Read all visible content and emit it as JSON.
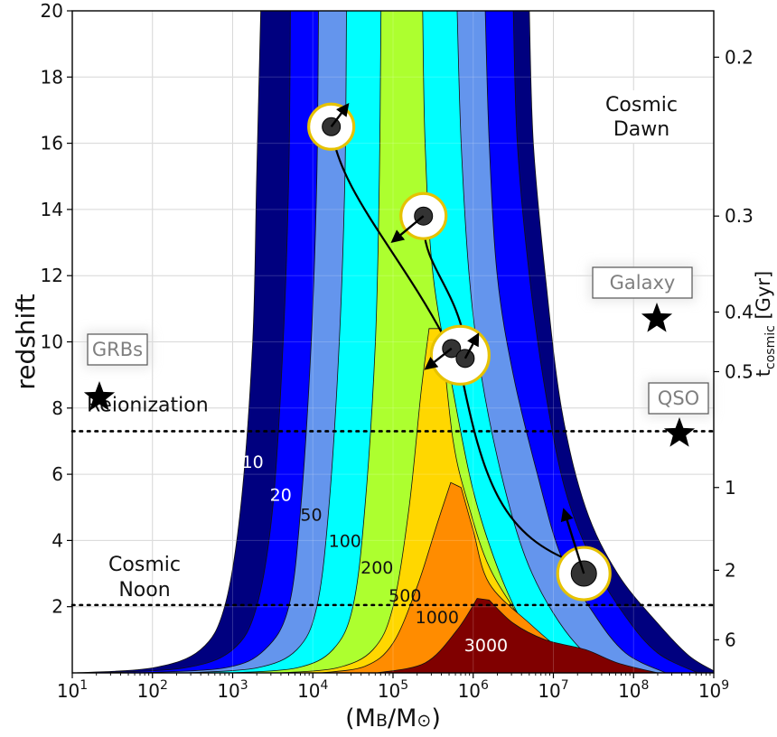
{
  "chart_data": {
    "type": "contour",
    "xlabel": "(M_B/M_⊙)",
    "ylabel": "redshift",
    "y2label": "t_cosmic [Gyr]",
    "xscale": "log",
    "xlim": [
      10,
      1000000000
    ],
    "ylim": [
      0,
      20
    ],
    "x_ticks": [
      {
        "exp": 1,
        "base": "10",
        "sup": "1"
      },
      {
        "exp": 2,
        "base": "10",
        "sup": "2"
      },
      {
        "exp": 3,
        "base": "10",
        "sup": "3"
      },
      {
        "exp": 4,
        "base": "10",
        "sup": "4"
      },
      {
        "exp": 5,
        "base": "10",
        "sup": "5"
      },
      {
        "exp": 6,
        "base": "10",
        "sup": "6"
      },
      {
        "exp": 7,
        "base": "10",
        "sup": "7"
      },
      {
        "exp": 8,
        "base": "10",
        "sup": "8"
      },
      {
        "exp": 9,
        "base": "10",
        "sup": "9"
      }
    ],
    "y_ticks": [
      2,
      4,
      6,
      8,
      10,
      12,
      14,
      16,
      18,
      20
    ],
    "y2_ticks": [
      {
        "label": "0.2",
        "z": 18.6
      },
      {
        "label": "0.3",
        "z": 13.8
      },
      {
        "label": "0.4",
        "z": 10.9
      },
      {
        "label": "0.5",
        "z": 9.1
      },
      {
        "label": "1",
        "z": 5.6
      },
      {
        "label": "2",
        "z": 3.1
      },
      {
        "label": "6",
        "z": 1.0
      }
    ],
    "grid": true,
    "contours": [
      {
        "level": 10,
        "color": "#00007f",
        "label": "10",
        "label_at": [
          3.25,
          6.2
        ],
        "label_color": "#ffffff",
        "left": [
          [
            1.0,
            0
          ],
          [
            2.0,
            0.15
          ],
          [
            2.6,
            0.7
          ],
          [
            2.9,
            2.0
          ],
          [
            3.1,
            5
          ],
          [
            3.25,
            10
          ],
          [
            3.3,
            15
          ],
          [
            3.35,
            20
          ]
        ],
        "right": [
          [
            9.05,
            0
          ],
          [
            8.7,
            0.5
          ],
          [
            8.3,
            1.5
          ],
          [
            7.8,
            3.0
          ],
          [
            7.4,
            5
          ],
          [
            7.1,
            8
          ],
          [
            6.9,
            12
          ],
          [
            6.75,
            16
          ],
          [
            6.7,
            20
          ]
        ]
      },
      {
        "level": 20,
        "color": "#0000ff",
        "label": "20",
        "label_at": [
          3.6,
          5.2
        ],
        "label_color": "#ffffff",
        "left": [
          [
            1.3,
            0
          ],
          [
            2.4,
            0.15
          ],
          [
            3.0,
            0.7
          ],
          [
            3.3,
            2.0
          ],
          [
            3.5,
            5
          ],
          [
            3.63,
            10
          ],
          [
            3.7,
            15
          ],
          [
            3.72,
            20
          ]
        ],
        "right": [
          [
            8.8,
            0
          ],
          [
            8.3,
            0.6
          ],
          [
            7.9,
            1.7
          ],
          [
            7.5,
            3.3
          ],
          [
            7.15,
            5.5
          ],
          [
            6.9,
            8.5
          ],
          [
            6.7,
            12
          ],
          [
            6.55,
            16
          ],
          [
            6.5,
            20
          ]
        ]
      },
      {
        "level": 50,
        "color": "#6495ed",
        "label": "50",
        "label_at": [
          3.98,
          4.6
        ],
        "label_color": "#111111",
        "left": [
          [
            1.8,
            0
          ],
          [
            2.9,
            0.15
          ],
          [
            3.4,
            0.7
          ],
          [
            3.7,
            2.0
          ],
          [
            3.85,
            5
          ],
          [
            3.98,
            10
          ],
          [
            4.05,
            15
          ],
          [
            4.07,
            20
          ]
        ],
        "right": [
          [
            8.4,
            0
          ],
          [
            7.9,
            0.6
          ],
          [
            7.5,
            1.8
          ],
          [
            7.1,
            3.5
          ],
          [
            6.8,
            6
          ],
          [
            6.5,
            9
          ],
          [
            6.3,
            12
          ],
          [
            6.2,
            16
          ],
          [
            6.15,
            20
          ]
        ]
      },
      {
        "level": 100,
        "color": "#00ffff",
        "label": "100",
        "label_at": [
          4.4,
          3.8
        ],
        "label_color": "#111111",
        "left": [
          [
            2.4,
            0
          ],
          [
            3.3,
            0.15
          ],
          [
            3.8,
            0.7
          ],
          [
            4.05,
            2.0
          ],
          [
            4.2,
            5
          ],
          [
            4.33,
            10
          ],
          [
            4.4,
            15
          ],
          [
            4.42,
            20
          ]
        ],
        "right": [
          [
            7.9,
            0
          ],
          [
            7.4,
            0.6
          ],
          [
            7.0,
            1.8
          ],
          [
            6.65,
            3.5
          ],
          [
            6.35,
            6
          ],
          [
            6.1,
            9
          ],
          [
            5.95,
            12
          ],
          [
            5.85,
            16
          ],
          [
            5.8,
            20
          ]
        ]
      },
      {
        "level": 200,
        "color": "#adff2f",
        "label": "200",
        "label_at": [
          4.8,
          3.0
        ],
        "label_color": "#111111",
        "left": [
          [
            3.0,
            0
          ],
          [
            3.8,
            0.15
          ],
          [
            4.25,
            0.7
          ],
          [
            4.5,
            2.0
          ],
          [
            4.65,
            5
          ],
          [
            4.78,
            10
          ],
          [
            4.83,
            15
          ],
          [
            4.85,
            20
          ]
        ],
        "right": [
          [
            7.3,
            0
          ],
          [
            6.95,
            0.5
          ],
          [
            6.6,
            1.6
          ],
          [
            6.3,
            3.2
          ],
          [
            6.0,
            5.5
          ],
          [
            5.75,
            8.5
          ],
          [
            5.5,
            12
          ],
          [
            5.4,
            16
          ],
          [
            5.37,
            20
          ]
        ]
      },
      {
        "level": 500,
        "color": "#ffd700",
        "label": "500",
        "label_at": [
          5.15,
          2.15
        ],
        "label_color": "#111111",
        "left": [
          [
            3.6,
            0
          ],
          [
            4.3,
            0.15
          ],
          [
            4.75,
            0.7
          ],
          [
            5.0,
            2.0
          ],
          [
            5.2,
            5
          ],
          [
            5.35,
            8.5
          ],
          [
            5.45,
            10.4
          ]
        ],
        "right": [
          [
            5.6,
            10.4
          ],
          [
            5.75,
            7
          ],
          [
            5.95,
            5
          ],
          [
            6.2,
            3.2
          ],
          [
            6.6,
            1.6
          ],
          [
            6.9,
            0.5
          ],
          [
            7.2,
            0
          ]
        ]
      },
      {
        "level": 1000,
        "color": "#ff8c00",
        "label": "1000",
        "label_at": [
          5.55,
          1.5
        ],
        "label_color": "#111111",
        "left": [
          [
            4.1,
            0
          ],
          [
            4.65,
            0.2
          ],
          [
            5.0,
            0.9
          ],
          [
            5.3,
            2.6
          ],
          [
            5.55,
            4.5
          ],
          [
            5.72,
            5.75
          ]
        ],
        "right": [
          [
            5.85,
            5.6
          ],
          [
            6.0,
            4.3
          ],
          [
            6.2,
            2.7
          ],
          [
            6.7,
            1.5
          ],
          [
            7.2,
            0.5
          ],
          [
            7.6,
            0
          ]
        ]
      },
      {
        "level": 3000,
        "color": "#800000",
        "label": "3000",
        "label_at": [
          6.16,
          0.65
        ],
        "label_color": "#ffffff",
        "left": [
          [
            4.8,
            0
          ],
          [
            5.4,
            0.3
          ],
          [
            5.8,
            1.3
          ],
          [
            6.05,
            2.25
          ]
        ],
        "right": [
          [
            6.2,
            2.2
          ],
          [
            6.5,
            1.5
          ],
          [
            6.9,
            1.0
          ],
          [
            7.4,
            0.7
          ],
          [
            7.8,
            0.3
          ],
          [
            8.3,
            0
          ]
        ]
      }
    ],
    "reference_lines": [
      {
        "label": "Reionization",
        "y": 7.3,
        "style": "dotted"
      },
      {
        "label": "Cosmic Noon",
        "y": 2.05,
        "style": "dotted"
      }
    ],
    "annotations": {
      "cosmic_dawn": [
        "Cosmic",
        "Dawn"
      ],
      "reionization": "Reionization",
      "cosmic_noon": [
        "Cosmic",
        "Noon"
      ]
    },
    "markers": [
      {
        "label": "GRBs",
        "x_exp": 1.35,
        "y": 8.3
      },
      {
        "label": "Galaxy",
        "x_exp": 8.55,
        "y": 10.5
      },
      {
        "label": "QSO",
        "x_exp": 8.55,
        "y": 7.3
      }
    ],
    "black_holes": [
      {
        "id": "bh-1",
        "x_exp": 4.23,
        "y": 16.5,
        "size": "small"
      },
      {
        "id": "bh-2",
        "x_exp": 5.38,
        "y": 13.8,
        "size": "small"
      },
      {
        "id": "bh-3a",
        "x_exp": 5.73,
        "y": 9.8,
        "size": "pair"
      },
      {
        "id": "bh-3b",
        "x_exp": 5.9,
        "y": 9.5,
        "size": "pair"
      },
      {
        "id": "bh-4",
        "x_exp": 7.38,
        "y": 3.0,
        "size": "large"
      }
    ]
  }
}
